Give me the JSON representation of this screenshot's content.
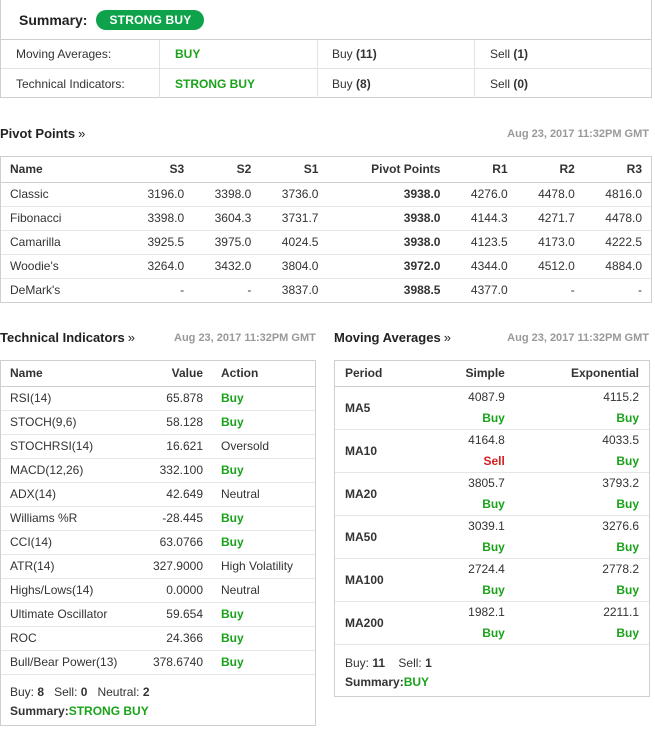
{
  "summary": {
    "label": "Summary:",
    "badge": "STRONG BUY",
    "rows": [
      {
        "name": "Moving Averages:",
        "signal": "BUY",
        "buy_label": "Buy",
        "buy_count": "(11)",
        "sell_label": "Sell",
        "sell_count": "(1)"
      },
      {
        "name": "Technical Indicators:",
        "signal": "STRONG BUY",
        "buy_label": "Buy",
        "buy_count": "(8)",
        "sell_label": "Sell",
        "sell_count": "(0)"
      }
    ]
  },
  "pivot": {
    "title": "Pivot Points",
    "arrow": "»",
    "timestamp": "Aug 23, 2017 11:32PM GMT",
    "headers": [
      "Name",
      "S3",
      "S2",
      "S1",
      "Pivot Points",
      "R1",
      "R2",
      "R3"
    ],
    "rows": [
      [
        "Classic",
        "3196.0",
        "3398.0",
        "3736.0",
        "3938.0",
        "4276.0",
        "4478.0",
        "4816.0"
      ],
      [
        "Fibonacci",
        "3398.0",
        "3604.3",
        "3731.7",
        "3938.0",
        "4144.3",
        "4271.7",
        "4478.0"
      ],
      [
        "Camarilla",
        "3925.5",
        "3975.0",
        "4024.5",
        "3938.0",
        "4123.5",
        "4173.0",
        "4222.5"
      ],
      [
        "Woodie's",
        "3264.0",
        "3432.0",
        "3804.0",
        "3972.0",
        "4344.0",
        "4512.0",
        "4884.0"
      ],
      [
        "DeMark's",
        "-",
        "-",
        "3837.0",
        "3988.5",
        "4377.0",
        "-",
        "-"
      ]
    ]
  },
  "technical": {
    "title": "Technical Indicators",
    "arrow": "»",
    "timestamp": "Aug 23, 2017 11:32PM GMT",
    "headers": [
      "Name",
      "Value",
      "Action"
    ],
    "rows": [
      {
        "name": "RSI(14)",
        "value": "65.878",
        "action": "Buy",
        "tone": "green"
      },
      {
        "name": "STOCH(9,6)",
        "value": "58.128",
        "action": "Buy",
        "tone": "green"
      },
      {
        "name": "STOCHRSI(14)",
        "value": "16.621",
        "action": "Oversold",
        "tone": "neutral"
      },
      {
        "name": "MACD(12,26)",
        "value": "332.100",
        "action": "Buy",
        "tone": "green"
      },
      {
        "name": "ADX(14)",
        "value": "42.649",
        "action": "Neutral",
        "tone": "neutral"
      },
      {
        "name": "Williams %R",
        "value": "-28.445",
        "action": "Buy",
        "tone": "green"
      },
      {
        "name": "CCI(14)",
        "value": "63.0766",
        "action": "Buy",
        "tone": "green"
      },
      {
        "name": "ATR(14)",
        "value": "327.9000",
        "action": "High Volatility",
        "tone": "neutral"
      },
      {
        "name": "Highs/Lows(14)",
        "value": "0.0000",
        "action": "Neutral",
        "tone": "neutral"
      },
      {
        "name": "Ultimate Oscillator",
        "value": "59.654",
        "action": "Buy",
        "tone": "green"
      },
      {
        "name": "ROC",
        "value": "24.366",
        "action": "Buy",
        "tone": "green"
      },
      {
        "name": "Bull/Bear Power(13)",
        "value": "378.6740",
        "action": "Buy",
        "tone": "green"
      }
    ],
    "footer": {
      "buy_label": "Buy:",
      "buy": "8",
      "sell_label": "Sell:",
      "sell": "0",
      "neutral_label": "Neutral:",
      "neutral": "2",
      "summary_label": "Summary:",
      "summary": "STRONG BUY"
    }
  },
  "moving": {
    "title": "Moving Averages",
    "arrow": "»",
    "timestamp": "Aug 23, 2017 11:32PM GMT",
    "headers": [
      "Period",
      "Simple",
      "Exponential"
    ],
    "rows": [
      {
        "period": "MA5",
        "simple": "4087.9",
        "simple_sig": "Buy",
        "simple_tone": "green",
        "exp": "4115.2",
        "exp_sig": "Buy",
        "exp_tone": "green"
      },
      {
        "period": "MA10",
        "simple": "4164.8",
        "simple_sig": "Sell",
        "simple_tone": "red",
        "exp": "4033.5",
        "exp_sig": "Buy",
        "exp_tone": "green"
      },
      {
        "period": "MA20",
        "simple": "3805.7",
        "simple_sig": "Buy",
        "simple_tone": "green",
        "exp": "3793.2",
        "exp_sig": "Buy",
        "exp_tone": "green"
      },
      {
        "period": "MA50",
        "simple": "3039.1",
        "simple_sig": "Buy",
        "simple_tone": "green",
        "exp": "3276.6",
        "exp_sig": "Buy",
        "exp_tone": "green"
      },
      {
        "period": "MA100",
        "simple": "2724.4",
        "simple_sig": "Buy",
        "simple_tone": "green",
        "exp": "2778.2",
        "exp_sig": "Buy",
        "exp_tone": "green"
      },
      {
        "period": "MA200",
        "simple": "1982.1",
        "simple_sig": "Buy",
        "simple_tone": "green",
        "exp": "2211.1",
        "exp_sig": "Buy",
        "exp_tone": "green"
      }
    ],
    "footer": {
      "buy_label": "Buy:",
      "buy": "11",
      "sell_label": "Sell:",
      "sell": "1",
      "summary_label": "Summary:",
      "summary": "BUY"
    }
  },
  "colors": {
    "accent_green": "#1aa31a",
    "badge_green": "#0ea24a",
    "sell_red": "#d32020"
  }
}
